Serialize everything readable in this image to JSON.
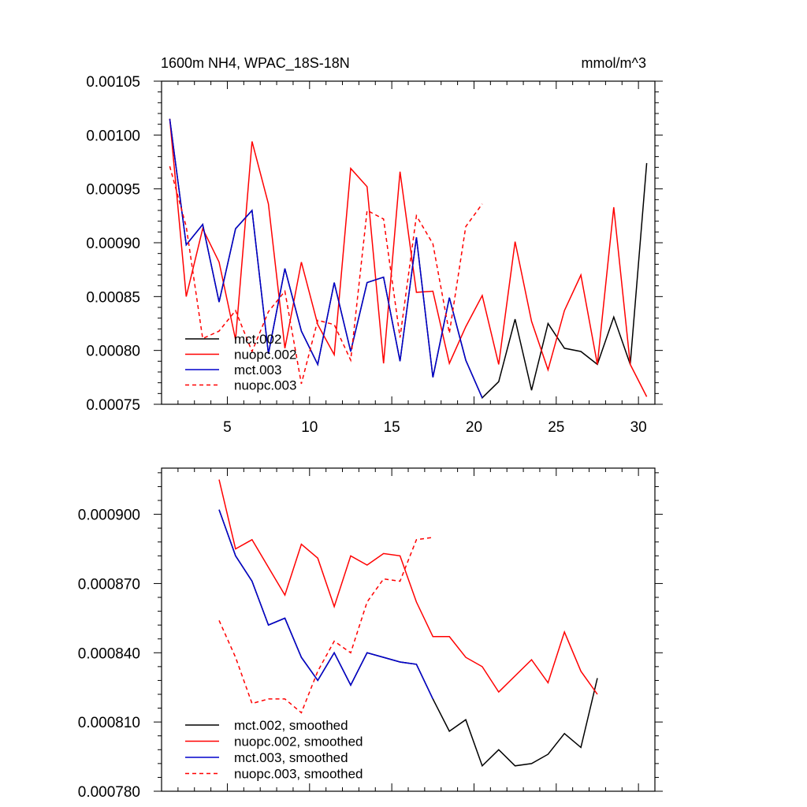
{
  "chart_data": [
    {
      "type": "line",
      "title_left": "1600m NH4, WPAC_18S-18N",
      "title_right": "mmol/m^3",
      "xlim": [
        1,
        31
      ],
      "ylim": [
        0.00075,
        0.00105
      ],
      "x_ticks": [
        5,
        10,
        15,
        20,
        25,
        30
      ],
      "x_tick_labels": [
        "5",
        "10",
        "15",
        "20",
        "25",
        "30"
      ],
      "y_ticks": [
        0.00075,
        0.0008,
        0.00085,
        0.0009,
        0.00095,
        0.001,
        0.00105
      ],
      "y_tick_labels": [
        "0.00075",
        "0.00080",
        "0.00085",
        "0.00090",
        "0.00095",
        "0.00100",
        "0.00105"
      ],
      "series": [
        {
          "name": "mct.002",
          "color": "#000000",
          "dashed": false,
          "x": [
            1.5,
            2.5,
            3.5,
            4.5,
            5.5,
            6.5,
            7.5,
            8.5,
            9.5,
            10.5,
            11.5,
            12.5,
            13.5,
            14.5,
            15.5,
            16.5,
            17.5,
            18.5,
            19.5,
            20.5,
            21.5,
            22.5,
            23.5,
            24.5,
            25.5,
            26.5,
            27.5,
            28.5,
            29.5,
            30.5
          ],
          "values": [
            0.001015,
            0.000898,
            0.000917,
            0.000845,
            0.000913,
            0.00093,
            0.000797,
            0.000876,
            0.000818,
            0.000787,
            0.000863,
            0.000799,
            0.000863,
            0.000868,
            0.00079,
            0.000905,
            0.000775,
            0.000849,
            0.000791,
            0.000756,
            0.000771,
            0.000829,
            0.000763,
            0.000825,
            0.000802,
            0.000799,
            0.000787,
            0.000831,
            0.000787,
            0.000974
          ]
        },
        {
          "name": "nuopc.002",
          "color": "#ff0000",
          "dashed": false,
          "x": [
            1.5,
            2.5,
            3.5,
            4.5,
            5.5,
            6.5,
            7.5,
            8.5,
            9.5,
            10.5,
            11.5,
            12.5,
            13.5,
            14.5,
            15.5,
            16.5,
            17.5,
            18.5,
            19.5,
            20.5,
            21.5,
            22.5,
            23.5,
            24.5,
            25.5,
            26.5,
            27.5,
            28.5,
            29.5,
            30.5
          ],
          "values": [
            0.001015,
            0.00085,
            0.000913,
            0.000882,
            0.00081,
            0.000994,
            0.000936,
            0.000802,
            0.000882,
            0.000824,
            0.000796,
            0.000969,
            0.000952,
            0.000788,
            0.000966,
            0.000854,
            0.000855,
            0.000788,
            0.000822,
            0.000851,
            0.000787,
            0.000901,
            0.000827,
            0.000782,
            0.000837,
            0.00087,
            0.000787,
            0.000933,
            0.000787,
            0.000757
          ]
        },
        {
          "name": "mct.003",
          "color": "#0000cc",
          "dashed": false,
          "x": [
            1.5,
            2.5,
            3.5,
            4.5,
            5.5,
            6.5,
            7.5,
            8.5,
            9.5,
            10.5,
            11.5,
            12.5,
            13.5,
            14.5,
            15.5,
            16.5,
            17.5,
            18.5,
            19.5,
            20.5
          ],
          "values": [
            0.001015,
            0.000898,
            0.000917,
            0.000845,
            0.000913,
            0.00093,
            0.000797,
            0.000876,
            0.000818,
            0.000787,
            0.000863,
            0.000799,
            0.000863,
            0.000868,
            0.00079,
            0.000905,
            0.000775,
            0.000849,
            0.000791,
            0.000756
          ]
        },
        {
          "name": "nuopc.003",
          "color": "#ff0000",
          "dashed": true,
          "x": [
            1.5,
            2.5,
            3.5,
            4.5,
            5.5,
            6.5,
            7.5,
            8.5,
            9.5,
            10.5,
            11.5,
            12.5,
            13.5,
            14.5,
            15.5,
            16.5,
            17.5,
            18.5,
            19.5,
            20.5
          ],
          "values": [
            0.000971,
            0.000915,
            0.000811,
            0.000818,
            0.000837,
            0.000799,
            0.000836,
            0.000855,
            0.000769,
            0.000828,
            0.000824,
            0.000791,
            0.00093,
            0.000922,
            0.000812,
            0.000925,
            0.000899,
            0.000816,
            0.000915,
            0.000936
          ]
        }
      ],
      "legend": [
        "mct.002",
        "nuopc.002",
        "mct.003",
        "nuopc.003"
      ]
    },
    {
      "type": "line",
      "xlim": [
        1,
        31
      ],
      "ylim": [
        0.00078,
        0.00092
      ],
      "x_ticks": [
        5,
        10,
        15,
        20,
        25,
        30
      ],
      "y_ticks": [
        0.00078,
        0.00081,
        0.00084,
        0.00087,
        0.0009
      ],
      "y_tick_labels": [
        "0.000780",
        "0.000810",
        "0.000840",
        "0.000870",
        "0.000900"
      ],
      "series": [
        {
          "name": "mct.002, smoothed",
          "color": "#000000",
          "dashed": false,
          "x": [
            4.5,
            5.5,
            6.5,
            7.5,
            8.5,
            9.5,
            10.5,
            11.5,
            12.5,
            13.5,
            14.5,
            15.5,
            16.5,
            17.5,
            18.5,
            19.5,
            20.5,
            21.5,
            22.5,
            23.5,
            24.5,
            25.5,
            26.5,
            27.5
          ],
          "values": [
            0.000902,
            0.000882,
            0.000871,
            0.000852,
            0.000855,
            0.000838,
            0.000828,
            0.00084,
            0.000826,
            0.00084,
            0.000838,
            0.000836,
            0.000835,
            0.00082,
            0.000806,
            0.000811,
            0.000791,
            0.000798,
            0.000791,
            0.000792,
            0.000796,
            0.000805,
            0.000799,
            0.000829
          ]
        },
        {
          "name": "nuopc.002, smoothed",
          "color": "#ff0000",
          "dashed": false,
          "x": [
            4.5,
            5.5,
            6.5,
            7.5,
            8.5,
            9.5,
            10.5,
            11.5,
            12.5,
            13.5,
            14.5,
            15.5,
            16.5,
            17.5,
            18.5,
            19.5,
            20.5,
            21.5,
            22.5,
            23.5,
            24.5,
            25.5,
            26.5,
            27.5
          ],
          "values": [
            0.000915,
            0.000885,
            0.000889,
            0.000877,
            0.000865,
            0.000887,
            0.000881,
            0.00086,
            0.000882,
            0.000878,
            0.000883,
            0.000882,
            0.000862,
            0.000847,
            0.000847,
            0.000838,
            0.000834,
            0.000823,
            0.00083,
            0.000837,
            0.000827,
            0.000849,
            0.000832,
            0.000822
          ]
        },
        {
          "name": "mct.003, smoothed",
          "color": "#0000cc",
          "dashed": false,
          "x": [
            4.5,
            5.5,
            6.5,
            7.5,
            8.5,
            9.5,
            10.5,
            11.5,
            12.5,
            13.5,
            14.5,
            15.5,
            16.5,
            17.5
          ],
          "values": [
            0.000902,
            0.000882,
            0.000871,
            0.000852,
            0.000855,
            0.000838,
            0.000828,
            0.00084,
            0.000826,
            0.00084,
            0.000838,
            0.000836,
            0.000835,
            0.00082
          ]
        },
        {
          "name": "nuopc.003, smoothed",
          "color": "#ff0000",
          "dashed": true,
          "x": [
            4.5,
            5.5,
            6.5,
            7.5,
            8.5,
            9.5,
            10.5,
            11.5,
            12.5,
            13.5,
            14.5,
            15.5,
            16.5,
            17.5
          ],
          "values": [
            0.000854,
            0.000838,
            0.000818,
            0.00082,
            0.00082,
            0.000814,
            0.000832,
            0.000845,
            0.00084,
            0.000862,
            0.000872,
            0.000871,
            0.000889,
            0.00089
          ]
        }
      ],
      "legend": [
        "mct.002, smoothed",
        "nuopc.002, smoothed",
        "mct.003, smoothed",
        "nuopc.003, smoothed"
      ]
    }
  ]
}
